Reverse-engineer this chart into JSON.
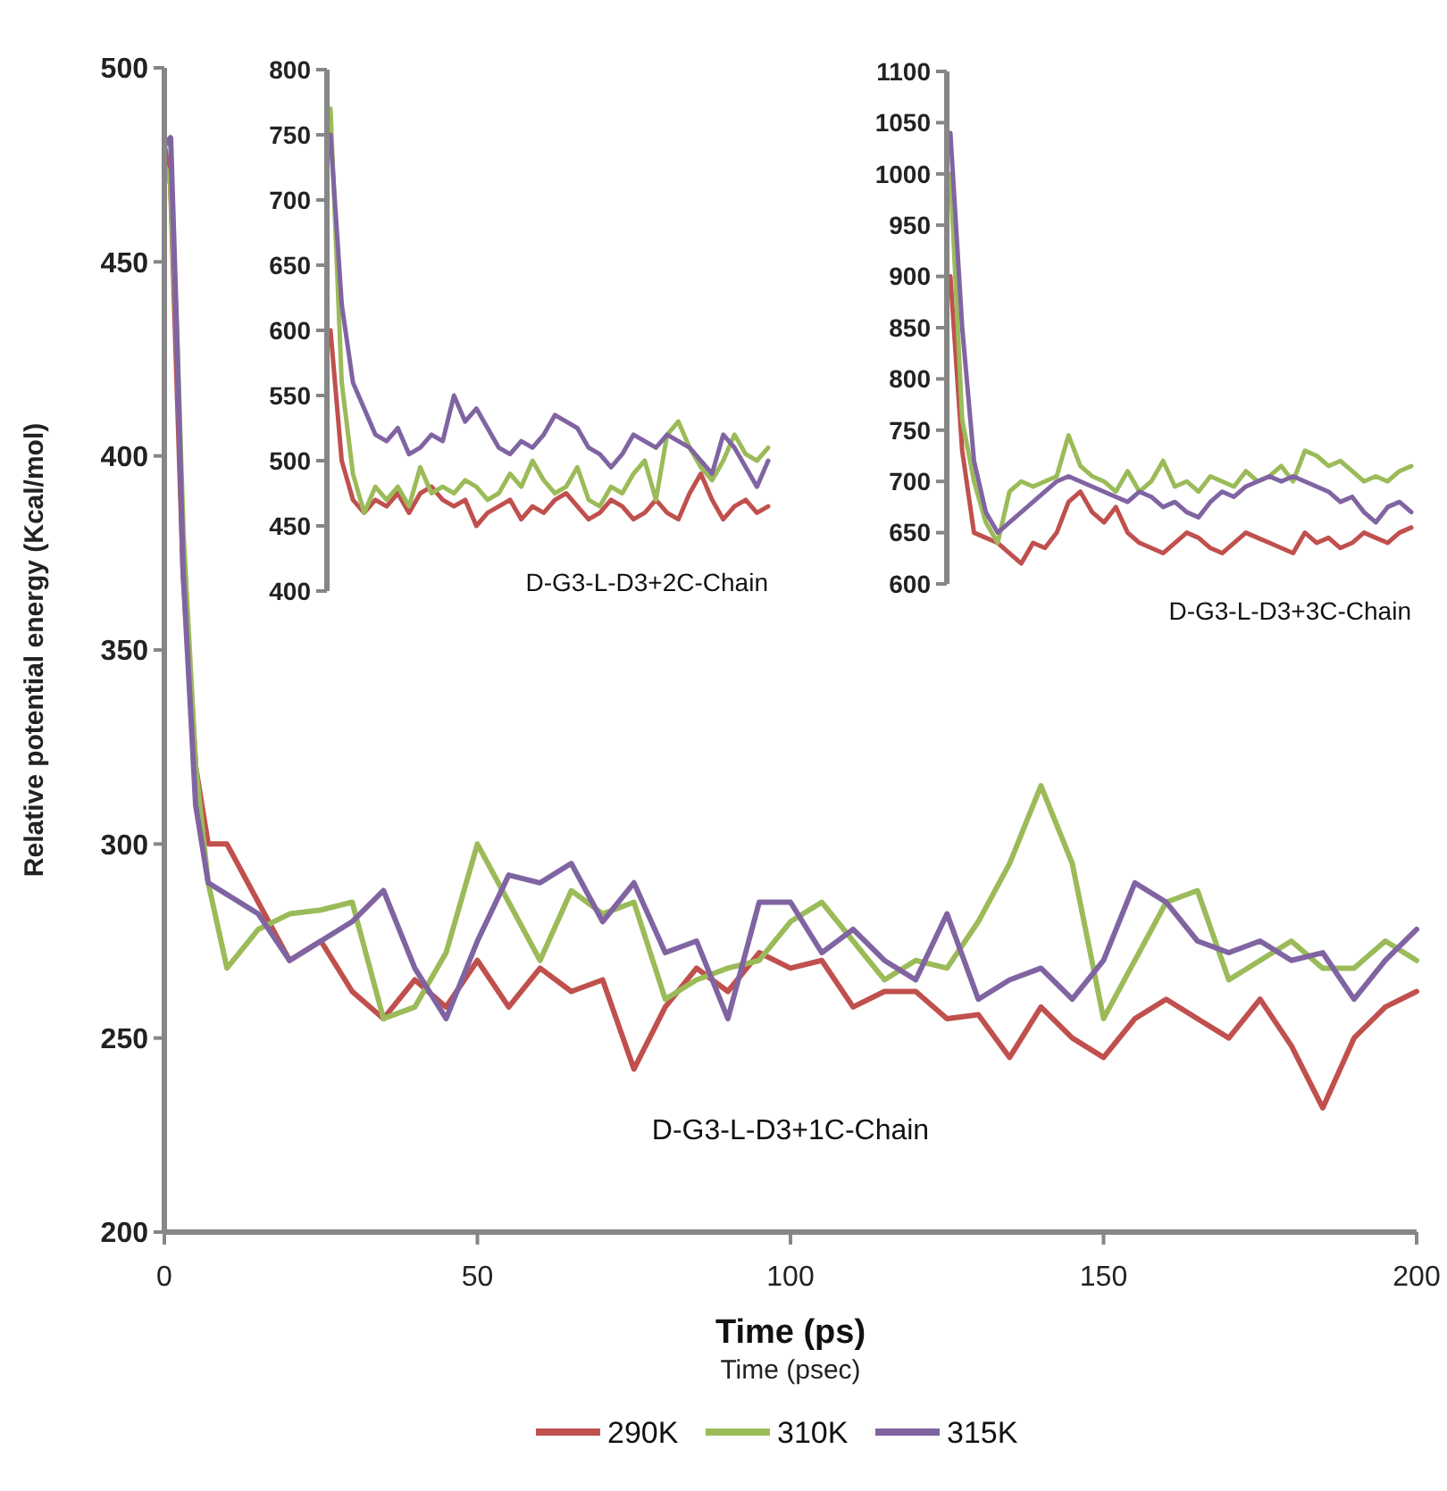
{
  "chart_data": [
    {
      "type": "line",
      "xlabel": "Time (ps)",
      "ylabel": "Relative potential energy (Kcal/mol)",
      "annotations": [
        "Time (psec)",
        "D-G3-L-D3+1C-Chain"
      ],
      "xlim": [
        0,
        200
      ],
      "ylim": [
        200,
        500
      ],
      "xticks": [
        0,
        50,
        100,
        150,
        200
      ],
      "yticks": [
        200,
        250,
        300,
        350,
        400,
        450,
        500
      ],
      "grid": false,
      "legend": "bottom",
      "marker": "none",
      "line_style": "solid",
      "x": [
        0,
        1,
        2,
        3,
        5,
        7,
        10,
        15,
        20,
        25,
        30,
        35,
        40,
        45,
        50,
        55,
        60,
        65,
        70,
        75,
        80,
        85,
        90,
        95,
        100,
        105,
        110,
        115,
        120,
        125,
        130,
        135,
        140,
        145,
        150,
        155,
        160,
        165,
        170,
        175,
        180,
        185,
        190,
        195,
        200
      ],
      "series": [
        {
          "name": "290K",
          "color": "#c0504d",
          "values": [
            480,
            470,
            420,
            370,
            320,
            300,
            300,
            285,
            270,
            275,
            262,
            255,
            265,
            258,
            270,
            258,
            268,
            262,
            265,
            242,
            258,
            268,
            262,
            272,
            268,
            270,
            258,
            262,
            262,
            255,
            256,
            245,
            258,
            250,
            245,
            255,
            260,
            255,
            250,
            260,
            248,
            232,
            250,
            258,
            262
          ]
        },
        {
          "name": "310K",
          "color": "#9bbb59",
          "values": [
            475,
            470,
            430,
            380,
            320,
            290,
            268,
            278,
            282,
            283,
            285,
            255,
            258,
            272,
            300,
            285,
            270,
            288,
            282,
            285,
            260,
            265,
            268,
            270,
            280,
            285,
            275,
            265,
            270,
            268,
            280,
            295,
            315,
            295,
            255,
            270,
            285,
            288,
            265,
            270,
            275,
            268,
            268,
            275,
            270
          ]
        },
        {
          "name": "315K",
          "color": "#8064a2",
          "values": [
            480,
            482,
            430,
            370,
            310,
            290,
            287,
            282,
            270,
            275,
            280,
            288,
            268,
            255,
            275,
            292,
            290,
            295,
            280,
            290,
            272,
            275,
            255,
            285,
            285,
            272,
            278,
            270,
            265,
            282,
            260,
            265,
            268,
            260,
            270,
            290,
            285,
            275,
            272,
            275,
            270,
            272,
            260,
            270,
            278
          ]
        }
      ]
    },
    {
      "type": "line",
      "annotations": [
        "D-G3-L-D3+2C-Chain"
      ],
      "ylim": [
        400,
        800
      ],
      "yticks": [
        400,
        450,
        500,
        550,
        600,
        650,
        700,
        750,
        800
      ],
      "grid": false,
      "marker": "none",
      "line_style": "solid",
      "categories": [
        null,
        null,
        null,
        null,
        null,
        null,
        null,
        null,
        null,
        null,
        null,
        null,
        null,
        null,
        null,
        null,
        null,
        null,
        null,
        null,
        null,
        null,
        null,
        null,
        null,
        null,
        null,
        null,
        null,
        null,
        null,
        null,
        null,
        null,
        null,
        null,
        null,
        null,
        null,
        null
      ],
      "series": [
        {
          "color": "#c0504d",
          "values": [
            600,
            500,
            470,
            460,
            470,
            465,
            475,
            460,
            475,
            480,
            470,
            465,
            470,
            450,
            460,
            465,
            470,
            455,
            465,
            460,
            470,
            475,
            465,
            455,
            460,
            470,
            465,
            455,
            460,
            470,
            460,
            455,
            475,
            490,
            470,
            455,
            465,
            470,
            460,
            465
          ]
        },
        {
          "color": "#9bbb59",
          "values": [
            770,
            560,
            490,
            460,
            480,
            470,
            480,
            465,
            495,
            475,
            480,
            475,
            485,
            480,
            470,
            475,
            490,
            480,
            500,
            485,
            475,
            480,
            495,
            470,
            465,
            480,
            475,
            490,
            500,
            470,
            520,
            530,
            510,
            495,
            485,
            500,
            520,
            505,
            500,
            510
          ]
        },
        {
          "color": "#8064a2",
          "values": [
            750,
            620,
            560,
            540,
            520,
            515,
            525,
            505,
            510,
            520,
            515,
            550,
            530,
            540,
            525,
            510,
            505,
            515,
            510,
            520,
            535,
            530,
            525,
            510,
            505,
            495,
            505,
            520,
            515,
            510,
            520,
            515,
            510,
            500,
            490,
            520,
            510,
            495,
            480,
            500
          ]
        }
      ]
    },
    {
      "type": "line",
      "annotations": [
        "D-G3-L-D3+3C-Chain"
      ],
      "ylim": [
        600,
        1100
      ],
      "yticks": [
        600,
        650,
        700,
        750,
        800,
        850,
        900,
        950,
        1000,
        1050,
        1100
      ],
      "grid": false,
      "marker": "none",
      "line_style": "solid",
      "categories": [
        null,
        null,
        null,
        null,
        null,
        null,
        null,
        null,
        null,
        null,
        null,
        null,
        null,
        null,
        null,
        null,
        null,
        null,
        null,
        null,
        null,
        null,
        null,
        null,
        null,
        null,
        null,
        null,
        null,
        null,
        null,
        null,
        null,
        null,
        null,
        null,
        null,
        null,
        null,
        null
      ],
      "series": [
        {
          "color": "#c0504d",
          "values": [
            900,
            730,
            650,
            645,
            640,
            630,
            620,
            640,
            635,
            650,
            680,
            690,
            670,
            660,
            675,
            650,
            640,
            635,
            630,
            640,
            650,
            645,
            635,
            630,
            640,
            650,
            645,
            640,
            635,
            630,
            650,
            640,
            645,
            635,
            640,
            650,
            645,
            640,
            650,
            655
          ]
        },
        {
          "color": "#9bbb59",
          "values": [
            1000,
            760,
            700,
            660,
            640,
            690,
            700,
            695,
            700,
            705,
            745,
            715,
            705,
            700,
            690,
            710,
            690,
            700,
            720,
            695,
            700,
            690,
            705,
            700,
            695,
            710,
            700,
            705,
            715,
            700,
            730,
            725,
            715,
            720,
            710,
            700,
            705,
            700,
            710,
            715
          ]
        },
        {
          "color": "#8064a2",
          "values": [
            1040,
            850,
            720,
            670,
            650,
            660,
            670,
            680,
            690,
            700,
            705,
            700,
            695,
            690,
            685,
            680,
            690,
            685,
            675,
            680,
            670,
            665,
            680,
            690,
            685,
            695,
            700,
            705,
            700,
            705,
            700,
            695,
            690,
            680,
            685,
            670,
            660,
            675,
            680,
            670
          ]
        }
      ]
    }
  ]
}
